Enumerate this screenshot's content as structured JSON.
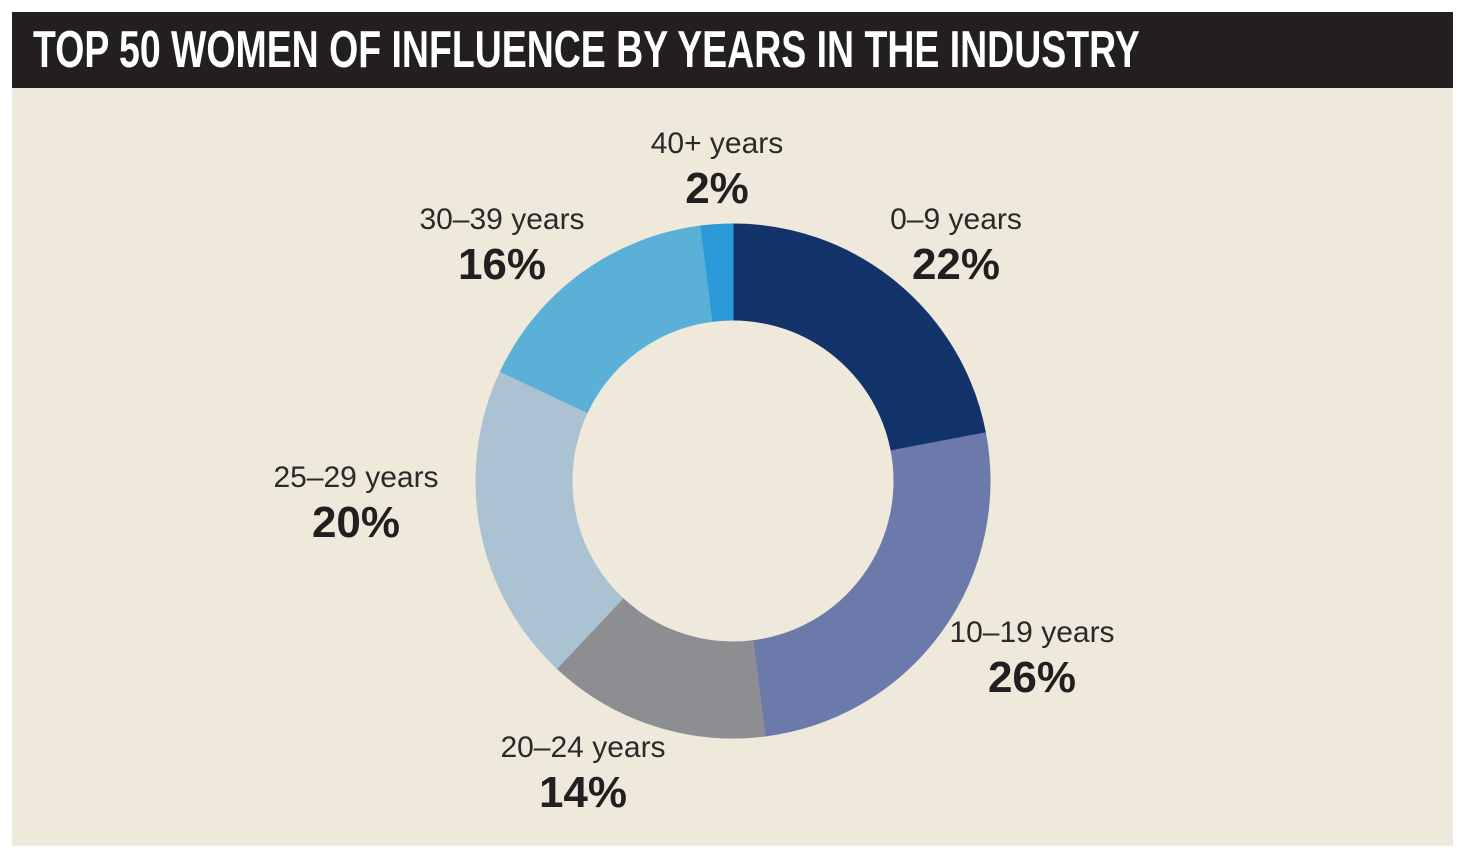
{
  "header": {
    "title": "TOP 50 WOMEN OF INFLUENCE BY YEARS IN THE INDUSTRY"
  },
  "colors": {
    "page_background": "#ffffff",
    "panel_background": "#eee9db",
    "header_background": "#231f20",
    "header_text": "#ffffff",
    "label_text": "#2b2a28",
    "pct_text": "#231f20"
  },
  "chart_data": {
    "type": "pie",
    "variant": "donut",
    "title": "TOP 50 WOMEN OF INFLUENCE BY YEARS IN THE INDUSTRY",
    "unit": "%",
    "total": 100,
    "start_angle_deg_from_top": 0,
    "direction": "clockwise",
    "legend_position": "labels-around-ring",
    "segments": [
      {
        "label": "0–9 years",
        "value": 22,
        "pct_label": "22%",
        "color": "#13336b"
      },
      {
        "label": "10–19 years",
        "value": 26,
        "pct_label": "26%",
        "color": "#6b7aab"
      },
      {
        "label": "20–24 years",
        "value": 14,
        "pct_label": "14%",
        "color": "#8c8e91"
      },
      {
        "label": "25–29 years",
        "value": 20,
        "pct_label": "20%",
        "color": "#abc2d3"
      },
      {
        "label": "30–39 years",
        "value": 16,
        "pct_label": "16%",
        "color": "#5bb0d8"
      },
      {
        "label": "40+ years",
        "value": 2,
        "pct_label": "2%",
        "color": "#2c9ad9"
      }
    ]
  }
}
